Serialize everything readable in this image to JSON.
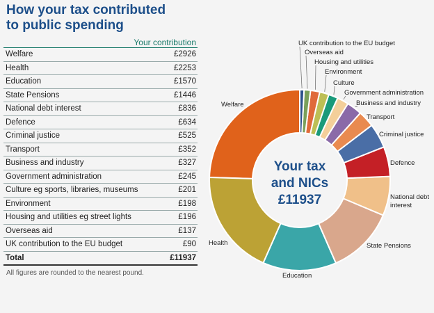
{
  "title_line1": "How your tax contributed",
  "title_line2": "to public spending",
  "column_header": "Your contribution",
  "rows": [
    {
      "label": "Welfare",
      "amount": "£2926"
    },
    {
      "label": "Health",
      "amount": "£2253"
    },
    {
      "label": "Education",
      "amount": "£1570"
    },
    {
      "label": "State Pensions",
      "amount": "£1446"
    },
    {
      "label": "National debt interest",
      "amount": "£836"
    },
    {
      "label": "Defence",
      "amount": "£634"
    },
    {
      "label": "Criminal justice",
      "amount": "£525"
    },
    {
      "label": "Transport",
      "amount": "£352"
    },
    {
      "label": "Business and industry",
      "amount": "£327"
    },
    {
      "label": "Government administration",
      "amount": "£245"
    },
    {
      "label": "Culture eg sports, libraries, museums",
      "amount": "£201"
    },
    {
      "label": "Environment",
      "amount": "£198"
    },
    {
      "label": "Housing and utilities eg street lights",
      "amount": "£196"
    },
    {
      "label": "Overseas aid",
      "amount": "£137"
    },
    {
      "label": "UK contribution to the EU budget",
      "amount": "£90"
    }
  ],
  "total_label": "Total",
  "total_amount": "£11937",
  "footnote": "All figures are rounded to the nearest pound.",
  "chart_data": {
    "type": "pie",
    "variant": "donut",
    "center_text": [
      "Your tax",
      "and NICs",
      "£11937"
    ],
    "slices": [
      {
        "label": "Welfare",
        "value": 2926,
        "color": "#e0621b"
      },
      {
        "label": "Health",
        "value": 2253,
        "color": "#bca235"
      },
      {
        "label": "Education",
        "value": 1570,
        "color": "#3aa6a8"
      },
      {
        "label": "State Pensions",
        "value": 1446,
        "color": "#d9a78c"
      },
      {
        "label": "National debt interest",
        "label_lines": [
          "National debt",
          "interest"
        ],
        "value": 836,
        "color": "#f0c089"
      },
      {
        "label": "Defence",
        "value": 634,
        "color": "#c42026"
      },
      {
        "label": "Criminal justice",
        "value": 525,
        "color": "#4a6ea6"
      },
      {
        "label": "Transport",
        "value": 352,
        "color": "#e98a50"
      },
      {
        "label": "Business and industry",
        "value": 327,
        "color": "#8a6aa8"
      },
      {
        "label": "Government administration",
        "value": 245,
        "color": "#f4cf9a"
      },
      {
        "label": "Culture",
        "value": 201,
        "color": "#1a9a7a"
      },
      {
        "label": "Environment",
        "value": 198,
        "color": "#bdbf55"
      },
      {
        "label": "Housing and utilities",
        "value": 196,
        "color": "#e06a3a"
      },
      {
        "label": "Overseas aid",
        "value": 137,
        "color": "#7aa05a"
      },
      {
        "label": "UK contribution to the EU budget",
        "value": 90,
        "color": "#2a4f8a"
      }
    ]
  }
}
